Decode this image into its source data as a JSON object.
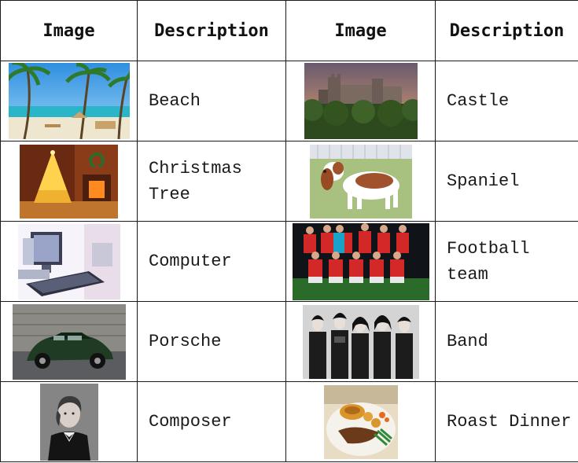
{
  "table": {
    "headers": [
      "Image",
      "Description",
      "Image",
      "Description"
    ],
    "rows": [
      {
        "left": {
          "image": "beach-photo",
          "description": "Beach"
        },
        "right": {
          "image": "castle-photo",
          "description": "Castle"
        }
      },
      {
        "left": {
          "image": "christmas-tree-photo",
          "description": "Christmas Tree"
        },
        "right": {
          "image": "spaniel-photo",
          "description": "Spaniel"
        }
      },
      {
        "left": {
          "image": "computer-photo",
          "description": "Computer"
        },
        "right": {
          "image": "football-team-photo",
          "description": "Football team"
        }
      },
      {
        "left": {
          "image": "porsche-photo",
          "description": "Porsche"
        },
        "right": {
          "image": "band-photo",
          "description": "Band"
        }
      },
      {
        "left": {
          "image": "composer-photo",
          "description": "Composer"
        },
        "right": {
          "image": "roast-dinner-photo",
          "description": "Roast Dinner"
        }
      }
    ]
  }
}
